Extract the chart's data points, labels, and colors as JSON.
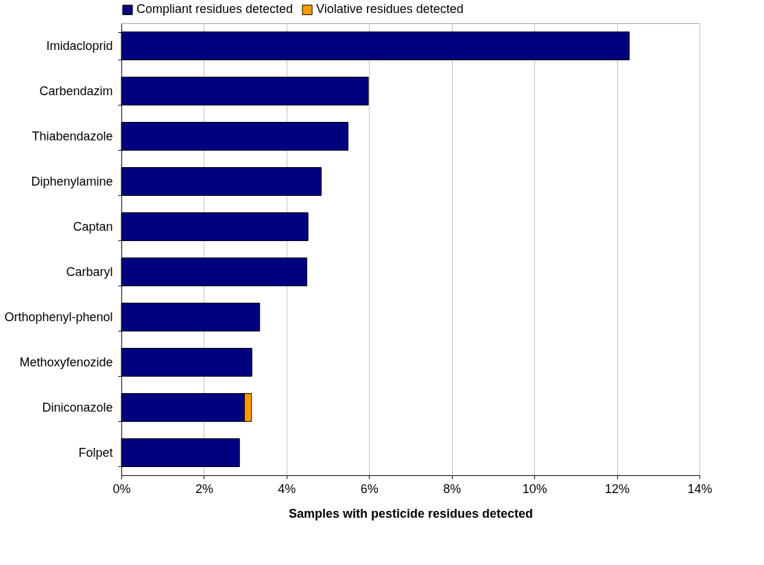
{
  "chart_data": {
    "type": "bar",
    "orientation": "horizontal",
    "stacked": true,
    "xlabel": "Samples with pesticide residues detected",
    "categories": [
      "Imidacloprid",
      "Carbendazim",
      "Thiabendazole",
      "Diphenylamine",
      "Captan",
      "Carbaryl",
      "Orthophenyl-phenol",
      "Methoxyfenozide",
      "Diniconazole",
      "Folpet"
    ],
    "series": [
      {
        "name": "Compliant residues detected",
        "color": "#000080",
        "values": [
          12.3,
          5.98,
          5.49,
          4.84,
          4.52,
          4.49,
          3.35,
          3.16,
          2.98,
          2.86
        ]
      },
      {
        "name": "Violative residues detected",
        "color": "#ff9900",
        "values": [
          null,
          null,
          null,
          null,
          null,
          null,
          null,
          null,
          0.17,
          null
        ]
      }
    ],
    "xlim": [
      0,
      14
    ],
    "xticks": [
      {
        "value": 0,
        "label": "0%"
      },
      {
        "value": 2,
        "label": "2%"
      },
      {
        "value": 4,
        "label": "4%"
      },
      {
        "value": 6,
        "label": "6%"
      },
      {
        "value": 8,
        "label": "8%"
      },
      {
        "value": 10,
        "label": "10%"
      },
      {
        "value": 12,
        "label": "12%"
      },
      {
        "value": 14,
        "label": "14%"
      }
    ],
    "grid": "x",
    "legend": "top"
  }
}
